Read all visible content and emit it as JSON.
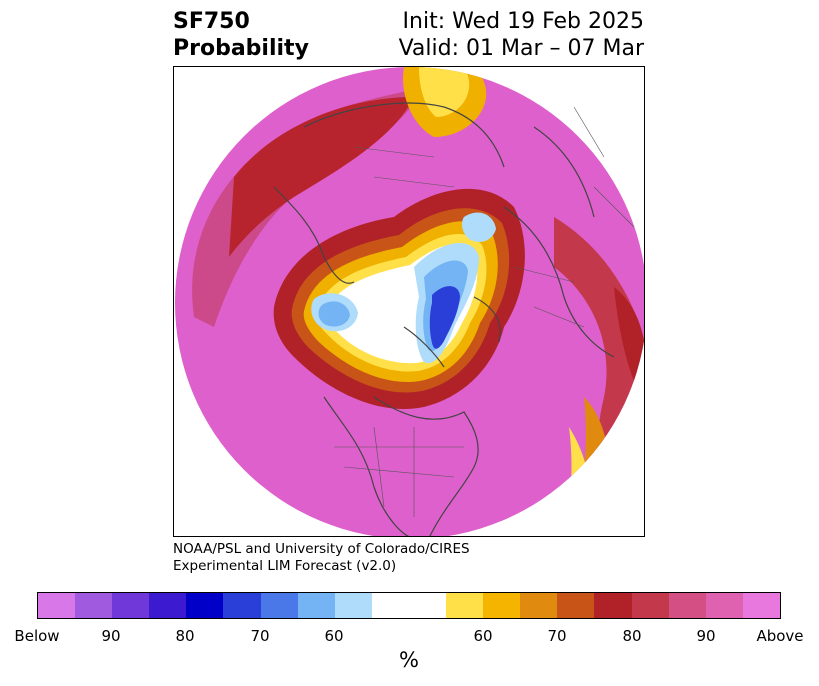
{
  "title": {
    "left_line1": "SF750",
    "left_line2": "Probability",
    "right_line1": "Init: Wed 19 Feb 2025",
    "right_line2": "Valid: 01 Mar – 07 Mar"
  },
  "credit": {
    "line1": "NOAA/PSL and University of Colorado/CIRES",
    "line2": "Experimental LIM Forecast (v2.0)"
  },
  "colorbar": {
    "colors": [
      "#d878e8",
      "#a05ae0",
      "#7038d8",
      "#3c1ad0",
      "#0000c8",
      "#2a3ed8",
      "#4a78e8",
      "#74b4f4",
      "#aedcfa",
      "#ffffff",
      "#ffffff",
      "#ffe048",
      "#f4b400",
      "#e08a10",
      "#c85418",
      "#b02228",
      "#c4384c",
      "#d45084",
      "#de62b0",
      "#e878de"
    ],
    "tick_labels": [
      "Below",
      "90",
      "80",
      "70",
      "60",
      "60",
      "70",
      "80",
      "90",
      "Above"
    ],
    "unit": "%"
  },
  "palette": {
    "land_outline": "#444444",
    "above_bg": "#e070d4"
  }
}
